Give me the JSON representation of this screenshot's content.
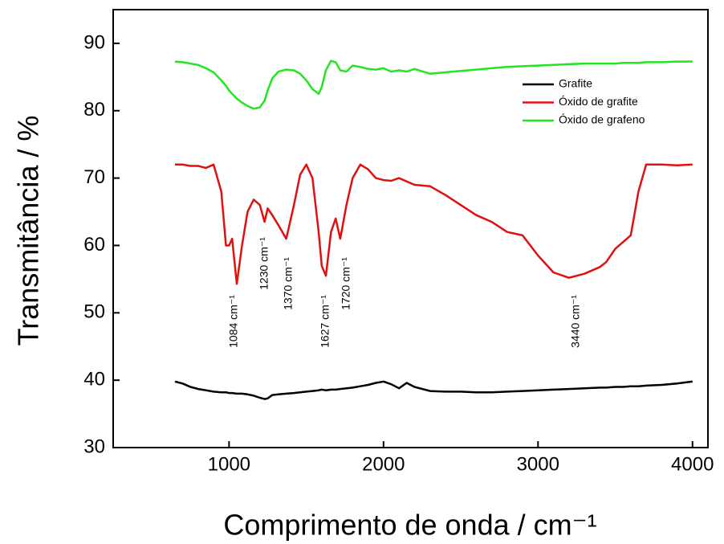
{
  "chart_data": {
    "type": "line",
    "x_label": "Comprimento de onda / cm⁻¹",
    "y_label": "Transmitância / %",
    "xlim": [
      250,
      4100
    ],
    "ylim": [
      30,
      95
    ],
    "xticks": [
      1000,
      2000,
      3000,
      4000
    ],
    "yticks": [
      30,
      40,
      50,
      60,
      70,
      80,
      90
    ],
    "legend": "upper right",
    "x": [
      650,
      700,
      750,
      800,
      850,
      900,
      950,
      980,
      1000,
      1020,
      1050,
      1084,
      1120,
      1160,
      1200,
      1230,
      1250,
      1280,
      1320,
      1370,
      1420,
      1460,
      1500,
      1540,
      1580,
      1600,
      1627,
      1660,
      1690,
      1720,
      1760,
      1800,
      1850,
      1900,
      1950,
      2000,
      2050,
      2100,
      2150,
      2200,
      2300,
      2400,
      2500,
      2600,
      2700,
      2800,
      2900,
      3000,
      3100,
      3200,
      3300,
      3400,
      3440,
      3500,
      3550,
      3600,
      3650,
      3700,
      3800,
      3900,
      4000
    ],
    "series": [
      {
        "name": "Grafite",
        "color": "#000000",
        "values": [
          39.8,
          39.5,
          39,
          38.7,
          38.5,
          38.3,
          38.2,
          38.2,
          38.1,
          38.1,
          38,
          38,
          37.9,
          37.7,
          37.4,
          37.2,
          37.3,
          37.8,
          37.9,
          38,
          38.1,
          38.2,
          38.3,
          38.4,
          38.5,
          38.6,
          38.5,
          38.6,
          38.6,
          38.7,
          38.8,
          38.9,
          39.1,
          39.3,
          39.6,
          39.8,
          39.4,
          38.8,
          39.6,
          39,
          38.4,
          38.3,
          38.3,
          38.2,
          38.2,
          38.3,
          38.4,
          38.5,
          38.6,
          38.7,
          38.8,
          38.9,
          38.9,
          39,
          39,
          39.1,
          39.1,
          39.2,
          39.3,
          39.5,
          39.8
        ]
      },
      {
        "name": "Óxido de grafite",
        "color": "#e01010",
        "values": [
          72,
          72,
          71.8,
          71.8,
          71.5,
          72,
          68,
          60,
          60,
          61,
          54.3,
          60,
          65,
          66.8,
          66,
          63.5,
          65.5,
          64.5,
          63,
          61,
          66,
          70.5,
          72,
          70,
          62,
          57,
          55.5,
          62,
          64,
          61,
          66,
          70,
          72,
          71.3,
          70,
          69.7,
          69.6,
          70,
          69.5,
          69,
          68.8,
          67.5,
          66,
          64.5,
          63.5,
          62,
          61.5,
          58.5,
          56,
          55.2,
          55.8,
          56.8,
          57.5,
          59.5,
          60.5,
          61.5,
          68,
          72,
          72,
          71.9,
          72
        ]
      },
      {
        "name": "Óxido de grafeno",
        "color": "#22e622",
        "values": [
          87.3,
          87.2,
          87,
          86.8,
          86.3,
          85.7,
          84.5,
          83.7,
          83,
          82.5,
          81.8,
          81.2,
          80.7,
          80.3,
          80.5,
          81.5,
          83,
          84.8,
          85.8,
          86.1,
          86,
          85.5,
          84.5,
          83.2,
          82.5,
          83.5,
          86,
          87.4,
          87.2,
          86,
          85.8,
          86.7,
          86.5,
          86.2,
          86.1,
          86.3,
          85.8,
          86,
          85.8,
          86.2,
          85.5,
          85.7,
          85.9,
          86.1,
          86.3,
          86.5,
          86.6,
          86.7,
          86.8,
          86.9,
          87,
          87,
          87,
          87,
          87.1,
          87.1,
          87.1,
          87.2,
          87.2,
          87.3,
          87.3
        ]
      }
    ],
    "annotations": [
      "1084 cm⁻¹",
      "1230 cm⁻¹",
      "1370 cm⁻¹",
      "1627 cm⁻¹",
      "1720 cm⁻¹",
      "3440 cm⁻¹"
    ]
  }
}
